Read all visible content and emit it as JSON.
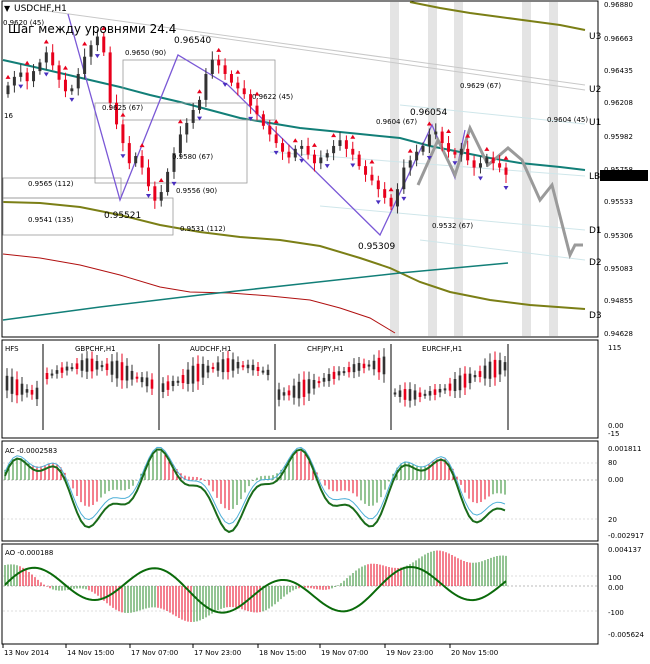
{
  "window": {
    "symbol": "USDCHF,H1",
    "title": "Шаг между уровнями 24.4"
  },
  "colors": {
    "background": "#ffffff",
    "grid_band": "#d9d9d9",
    "bull": "#333333",
    "bear": "#e8001c",
    "teal": "#127f78",
    "olive": "#7b7f16",
    "darkred": "#b01010",
    "purple": "#7a58d6",
    "forecast": "#9a9a9a",
    "ac_green": "#1a6b1a",
    "ao_green": "#0a6a0a",
    "price_tag": "#000000"
  },
  "price_axis": {
    "ticks": [
      "0.96880",
      "0.96663",
      "0.96435",
      "0.96208",
      "0.95982",
      "0.95758",
      "0.95533",
      "0.95306",
      "0.95083",
      "0.94855",
      "0.94628"
    ],
    "current": "0.95703"
  },
  "levels": [
    {
      "name": "U3",
      "label": "U3"
    },
    {
      "name": "U2",
      "label": "U2"
    },
    {
      "name": "U1",
      "label": "U1"
    },
    {
      "name": "LB",
      "label": "LB"
    },
    {
      "name": "D1",
      "label": "D1"
    },
    {
      "name": "D2",
      "label": "D2"
    },
    {
      "name": "D3",
      "label": "D3"
    }
  ],
  "annotations": [
    "0.9620 (45)",
    "0.9650 (90)",
    "0.96540",
    "0.9625 (67)",
    "0.9622 (45)",
    "0.9604 (67)",
    "0.96054",
    "0.9629 (67)",
    "0.9604 (45)",
    "0.9580 (67)",
    "0.9565 (112)",
    "0.9556 (90)",
    "0.9541 (135)",
    "0.95521",
    "0.9531 (112)",
    "0.9532 (67)",
    "0.95309",
    "16"
  ],
  "swing_points": {
    "x": [
      "14 Nov 01:00",
      "14 Nov 16:00",
      "17 Nov 01:00",
      "19 Nov 05:00",
      "19 Nov 19:00"
    ],
    "labels": [
      "0.96540",
      "0.95521",
      "0.96540",
      "0.95309",
      "0.96054"
    ]
  },
  "panels": {
    "hfs": {
      "title": "HFS",
      "symbols": [
        "GBPCHF,H1",
        "AUDCHF,H1",
        "CHFJPY,H1",
        "EURCHF,H1"
      ],
      "ticks": [
        "115",
        "0.00",
        "-15"
      ]
    },
    "ac": {
      "title": "AC -0.0002583",
      "ticks": [
        "0.001811",
        "80",
        "0.00",
        "20",
        "-0.002917"
      ]
    },
    "ao": {
      "title": "AO -0.000188",
      "ticks": [
        "0.004137",
        "100",
        "0.00",
        "-100",
        "-0.005624"
      ]
    }
  },
  "time_axis": [
    "13 Nov 2014",
    "14 Nov 15:00",
    "17 Nov 07:00",
    "17 Nov 23:00",
    "18 Nov 15:00",
    "19 Nov 07:00",
    "19 Nov 23:00",
    "20 Nov 15:00"
  ],
  "chart_data": {
    "type": "candlestick",
    "symbol": "USDCHF",
    "timeframe": "H1",
    "ylim": [
      0.9458,
      0.969
    ],
    "close_series": [
      0.9632,
      0.9638,
      0.9641,
      0.9635,
      0.9642,
      0.9648,
      0.9655,
      0.9646,
      0.9636,
      0.9628,
      0.963,
      0.964,
      0.9652,
      0.966,
      0.9666,
      0.9655,
      0.962,
      0.9605,
      0.9592,
      0.9578,
      0.9583,
      0.9575,
      0.9562,
      0.9552,
      0.9558,
      0.9572,
      0.9585,
      0.9598,
      0.9606,
      0.9615,
      0.9622,
      0.964,
      0.965,
      0.9646,
      0.964,
      0.9634,
      0.963,
      0.9626,
      0.9618,
      0.9612,
      0.9604,
      0.9598,
      0.9592,
      0.9586,
      0.9582,
      0.9588,
      0.959,
      0.9584,
      0.9578,
      0.9582,
      0.9585,
      0.959,
      0.9594,
      0.9588,
      0.9584,
      0.9576,
      0.957,
      0.9566,
      0.956,
      0.9554,
      0.9548,
      0.956,
      0.9575,
      0.958,
      0.9586,
      0.959,
      0.9598,
      0.96,
      0.9592,
      0.9586,
      0.9584,
      0.9588,
      0.958,
      0.9575,
      0.9578,
      0.9582,
      0.9578,
      0.9575,
      0.957
    ],
    "current_price": 0.95703
  }
}
